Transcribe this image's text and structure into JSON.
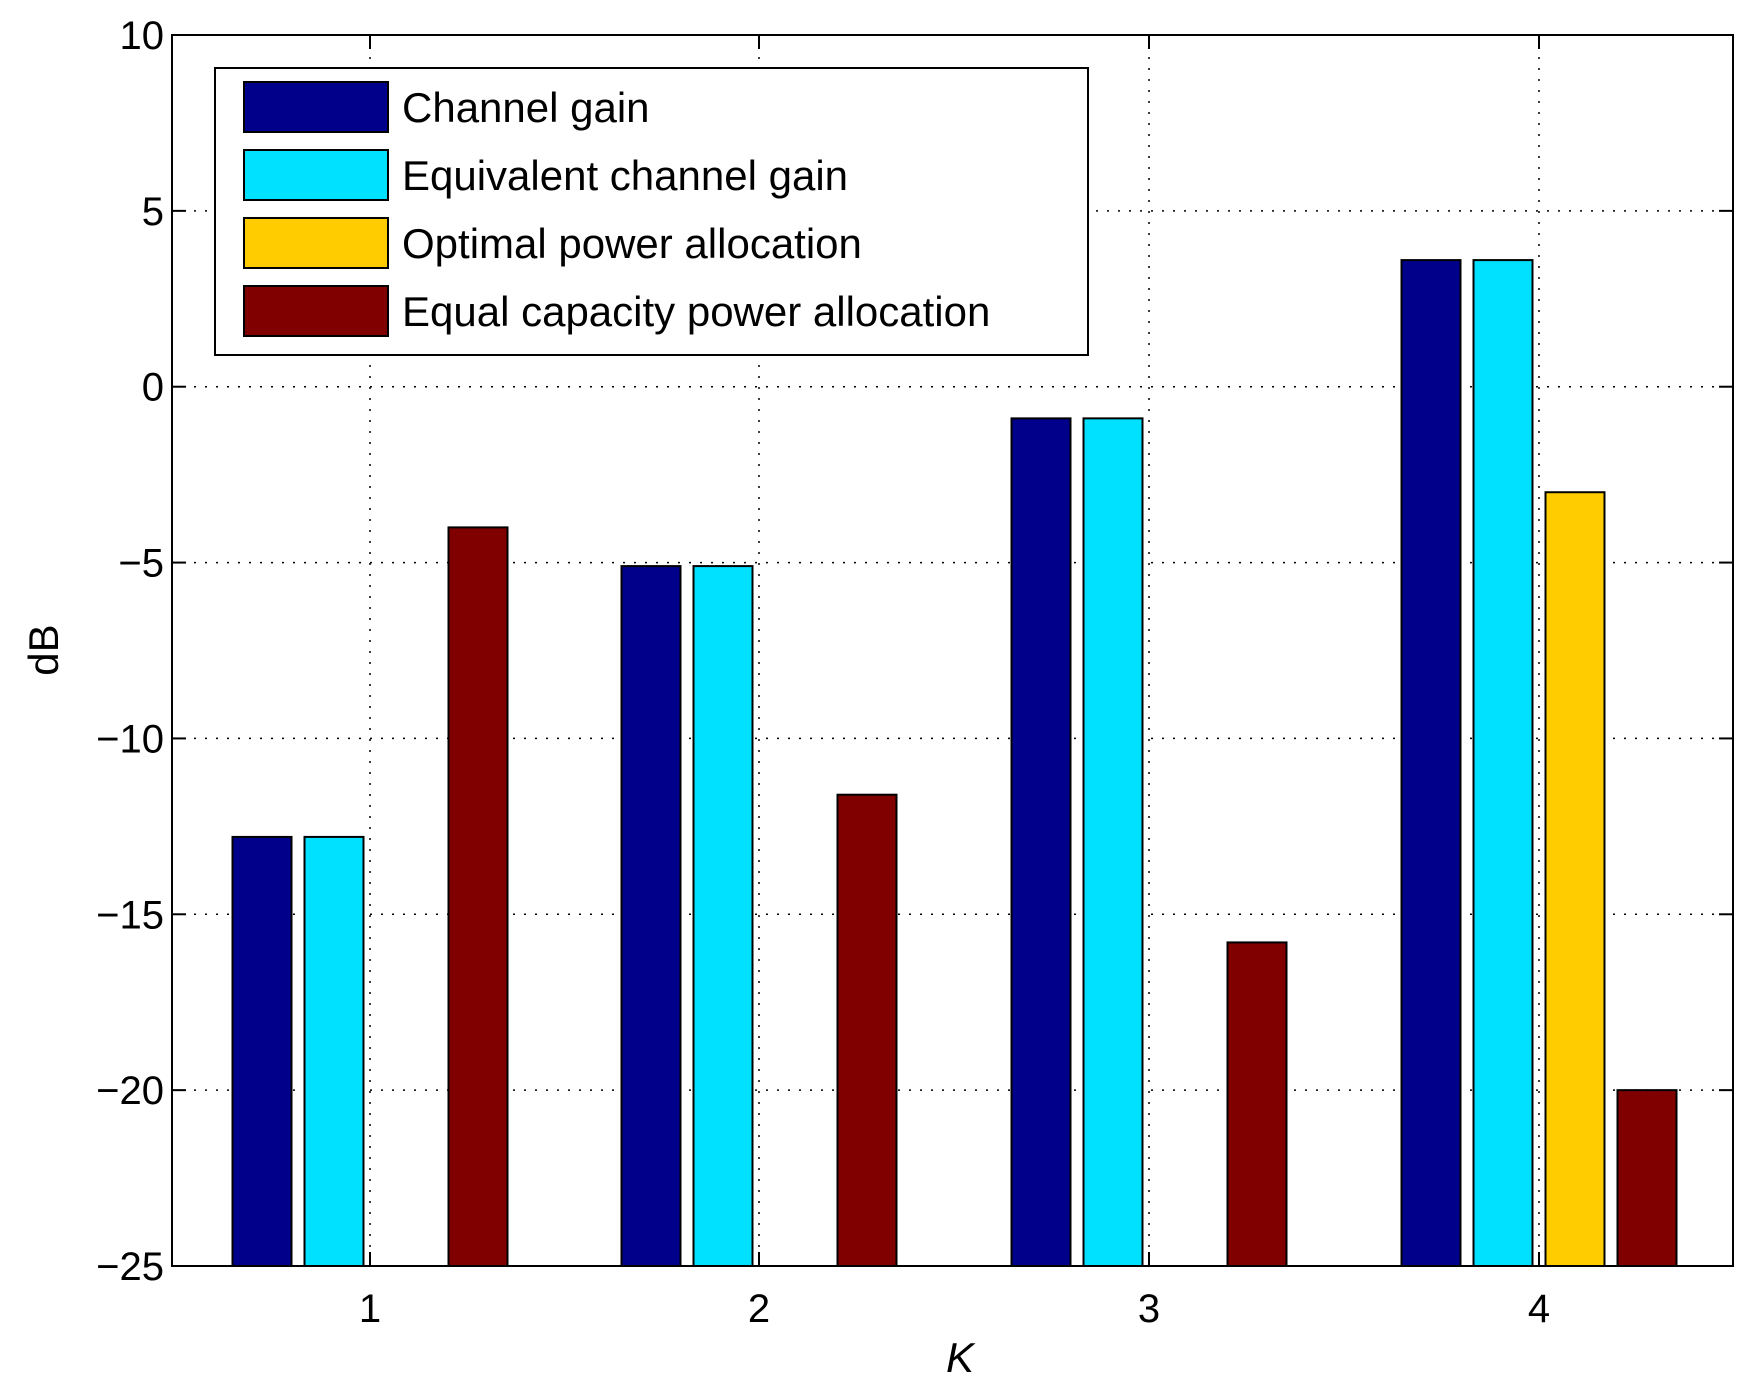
{
  "chart_data": {
    "type": "bar",
    "title": "",
    "xlabel": "K",
    "ylabel": "dB",
    "categories": [
      "1",
      "2",
      "3",
      "4"
    ],
    "ylim": [
      -25,
      10
    ],
    "yticks": [
      10,
      5,
      0,
      -5,
      -10,
      -15,
      -20,
      -25
    ],
    "ytick_labels": [
      "10",
      "5",
      "0",
      "−5",
      "−10",
      "−15",
      "−20",
      "−25"
    ],
    "grid": true,
    "legend_position": "top-left",
    "series": [
      {
        "name": "Channel gain",
        "color": "#00008B",
        "values": [
          -12.8,
          -5.1,
          -0.9,
          3.6
        ]
      },
      {
        "name": "Equivalent channel gain",
        "color": "#00E0FF",
        "values": [
          -12.8,
          -5.1,
          -0.9,
          3.6
        ]
      },
      {
        "name": "Optimal power allocation",
        "color": "#FFCC00",
        "values": [
          null,
          null,
          null,
          -3.0
        ]
      },
      {
        "name": "Equal capacity power allocation",
        "color": "#800000",
        "values": [
          -4.0,
          -11.6,
          -15.8,
          -20.0
        ]
      }
    ]
  }
}
